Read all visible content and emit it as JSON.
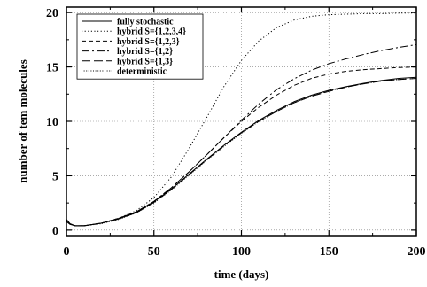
{
  "chart_data": {
    "type": "line",
    "xlabel": "time (days)",
    "ylabel": "number of tem molecules",
    "xlim": [
      0,
      200
    ],
    "ylim": [
      -0.5,
      20.5
    ],
    "xticks": [
      0,
      50,
      100,
      150,
      200
    ],
    "yticks": [
      0,
      5,
      10,
      15,
      20
    ],
    "grid": true,
    "legend_position": "top-left",
    "series": [
      {
        "name": "fully stochastic",
        "dash": "solid",
        "x": [
          0,
          2,
          5,
          10,
          20,
          30,
          40,
          50,
          60,
          70,
          80,
          90,
          100,
          110,
          120,
          130,
          140,
          150,
          160,
          170,
          180,
          190,
          200
        ],
        "y": [
          1.0,
          0.6,
          0.4,
          0.4,
          0.65,
          1.05,
          1.65,
          2.6,
          3.8,
          5.15,
          6.5,
          7.8,
          9.0,
          10.1,
          11.0,
          11.8,
          12.4,
          12.85,
          13.2,
          13.5,
          13.75,
          13.95,
          14.05
        ]
      },
      {
        "name": "hybrid S={1,2,3,4}",
        "dash": "dotted",
        "x": [
          0,
          2,
          5,
          10,
          20,
          30,
          40,
          50,
          60,
          70,
          80,
          90,
          100,
          110,
          120,
          130,
          140,
          150,
          160,
          170,
          180,
          190,
          200
        ],
        "y": [
          0.8,
          0.55,
          0.4,
          0.4,
          0.65,
          1.1,
          1.8,
          3.0,
          4.9,
          7.5,
          10.3,
          13.2,
          15.6,
          17.4,
          18.6,
          19.3,
          19.65,
          19.8,
          19.85,
          19.9,
          19.9,
          19.95,
          19.95
        ]
      },
      {
        "name": "hybrid S={1,2,3}",
        "dash": "dashed",
        "x": [
          0,
          2,
          5,
          10,
          20,
          30,
          40,
          50,
          60,
          70,
          80,
          90,
          100,
          110,
          120,
          130,
          140,
          150,
          160,
          170,
          180,
          190,
          200
        ],
        "y": [
          0.8,
          0.55,
          0.4,
          0.4,
          0.65,
          1.1,
          1.7,
          2.65,
          3.9,
          5.35,
          6.9,
          8.5,
          10.0,
          11.3,
          12.4,
          13.3,
          13.95,
          14.35,
          14.6,
          14.75,
          14.85,
          14.95,
          15.0
        ]
      },
      {
        "name": "hybrid S={1,2}",
        "dash": "dashdot",
        "x": [
          0,
          2,
          5,
          10,
          20,
          30,
          40,
          50,
          60,
          70,
          80,
          90,
          100,
          110,
          120,
          130,
          140,
          150,
          160,
          170,
          180,
          190,
          200
        ],
        "y": [
          0.8,
          0.55,
          0.4,
          0.4,
          0.65,
          1.1,
          1.7,
          2.65,
          3.9,
          5.35,
          6.9,
          8.5,
          10.1,
          11.6,
          12.9,
          13.9,
          14.7,
          15.3,
          15.75,
          16.15,
          16.5,
          16.8,
          17.05
        ]
      },
      {
        "name": "hybrid S={1,3}",
        "dash": "longdash",
        "x": [
          0,
          2,
          5,
          10,
          20,
          30,
          40,
          50,
          60,
          70,
          80,
          90,
          100,
          110,
          120,
          130,
          140,
          150,
          160,
          170,
          180,
          190,
          200
        ],
        "y": [
          0.8,
          0.55,
          0.4,
          0.4,
          0.65,
          1.05,
          1.6,
          2.55,
          3.75,
          5.1,
          6.45,
          7.75,
          8.95,
          10.0,
          10.9,
          11.7,
          12.3,
          12.75,
          13.15,
          13.45,
          13.7,
          13.85,
          13.95
        ]
      },
      {
        "name": "deterministic",
        "dash": "finedot",
        "x": [
          0,
          2,
          5,
          10,
          20,
          30,
          40,
          50,
          60,
          70,
          80,
          90,
          100,
          110,
          120,
          130,
          140,
          150,
          160,
          170,
          180,
          190,
          200
        ],
        "y": [
          0.8,
          0.55,
          0.4,
          0.4,
          0.6,
          1.0,
          1.6,
          2.5,
          3.7,
          5.05,
          6.4,
          7.7,
          8.9,
          10.0,
          10.9,
          11.7,
          12.3,
          12.8,
          13.15,
          13.45,
          13.7,
          13.85,
          13.95
        ]
      }
    ]
  }
}
